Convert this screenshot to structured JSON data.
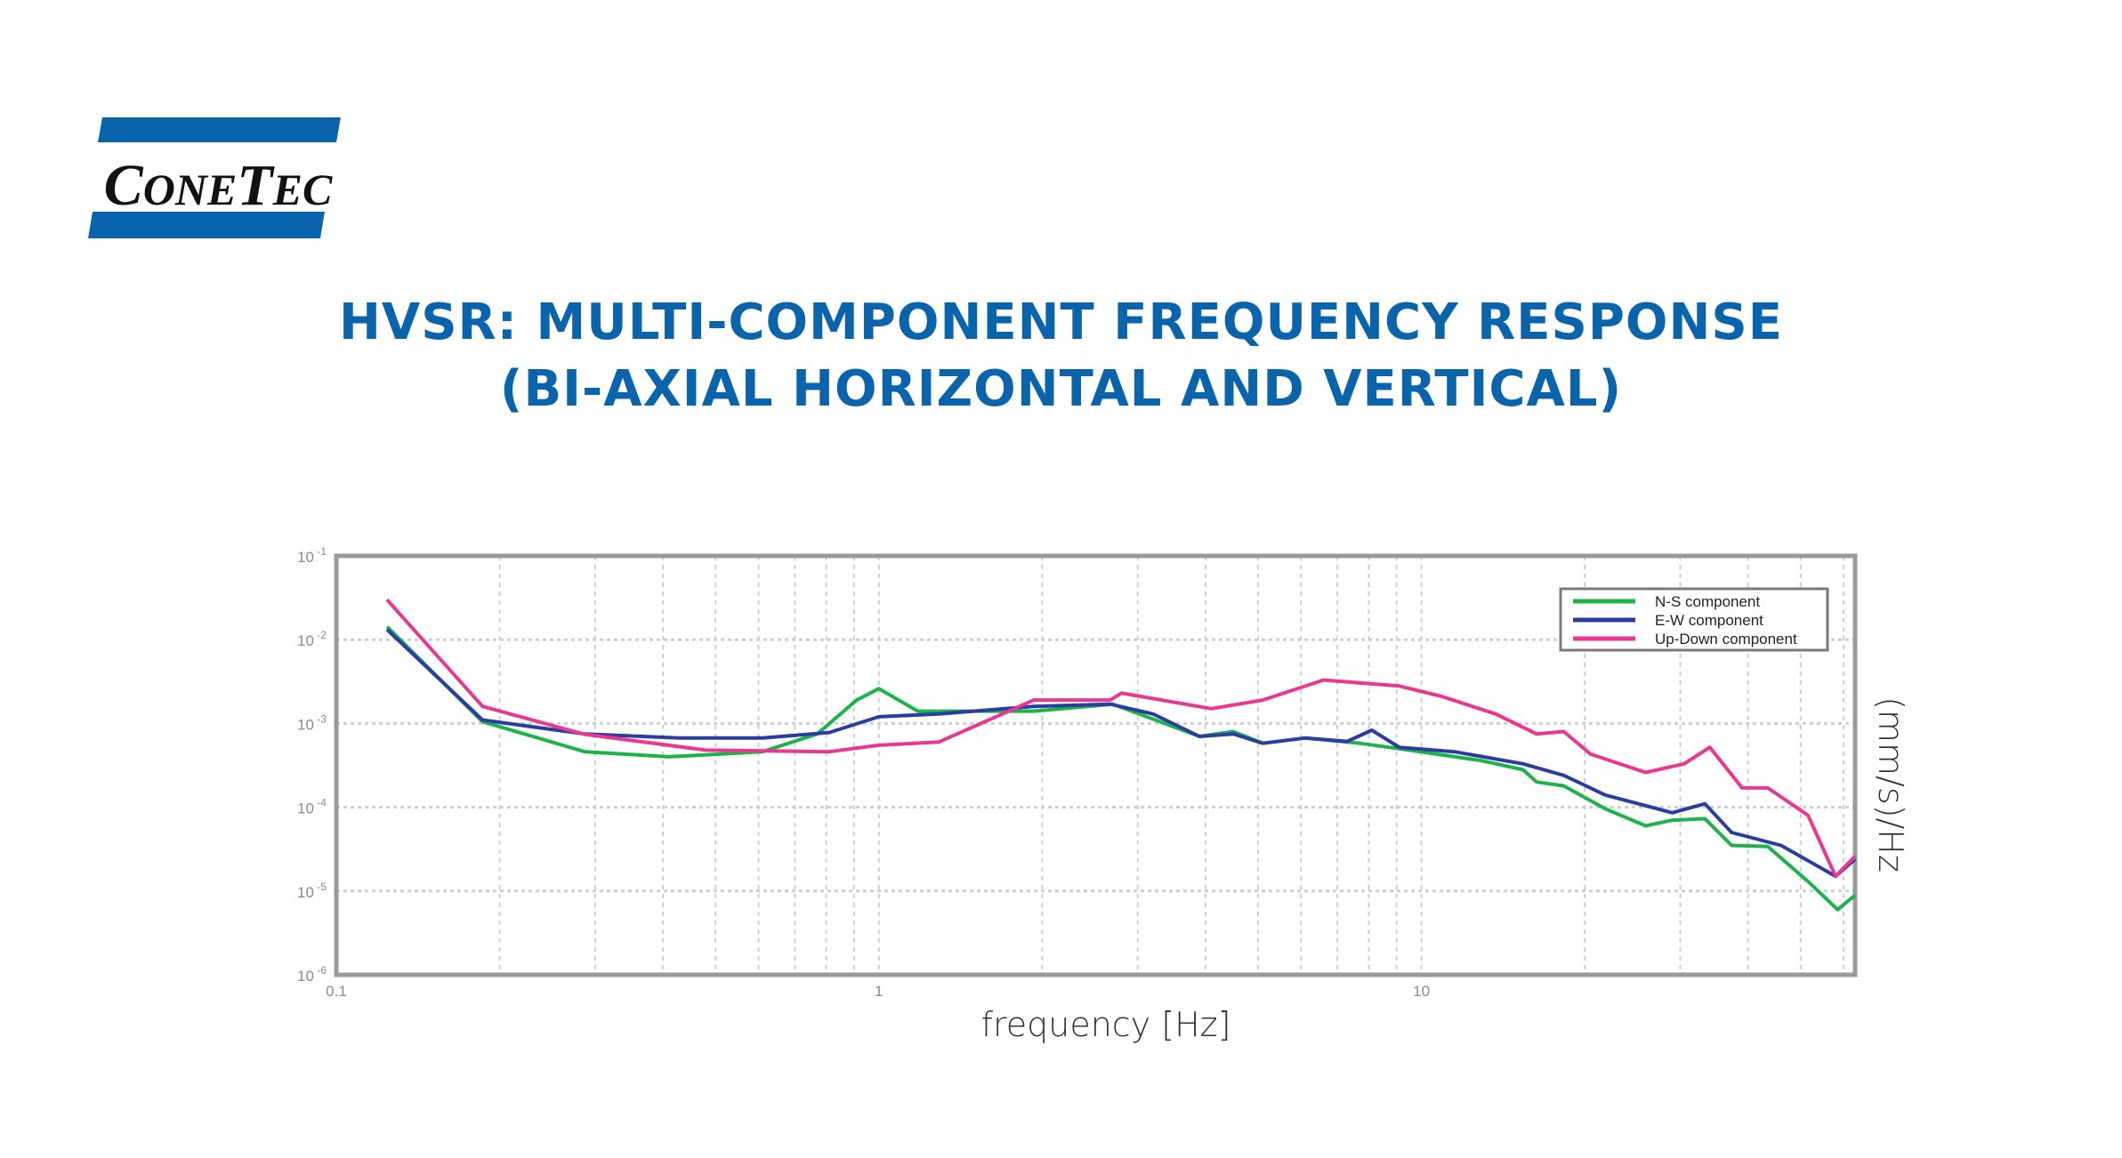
{
  "logo": {
    "text": "ConeTec",
    "color": "#0a64ac"
  },
  "title": {
    "line1": "HVSR: MULTI-COMPONENT FREQUENCY RESPONSE",
    "line2": "(BI-AXIAL HORIZONTAL AND VERTICAL)"
  },
  "chart_data": {
    "type": "line",
    "xlabel": "frequency [Hz]",
    "ylabel": "(mm/s)/Hz",
    "xscale": "log",
    "yscale": "log",
    "xlim": [
      0.1,
      63
    ],
    "ylim": [
      1e-06,
      0.1
    ],
    "x_ticks": [
      {
        "value": 0.1,
        "label": "0.1"
      },
      {
        "value": 1,
        "label": "1"
      },
      {
        "value": 10,
        "label": "10"
      }
    ],
    "y_ticks": [
      {
        "value": 0.1,
        "base": "10",
        "exp": "-1"
      },
      {
        "value": 0.01,
        "base": "10",
        "exp": "-2"
      },
      {
        "value": 0.001,
        "base": "10",
        "exp": "-3"
      },
      {
        "value": 0.0001,
        "base": "10",
        "exp": "-4"
      },
      {
        "value": 1e-05,
        "base": "10",
        "exp": "-5"
      },
      {
        "value": 1e-06,
        "base": "10",
        "exp": "-6"
      }
    ],
    "grid": true,
    "legend_position": "top-right",
    "series": [
      {
        "name": "N-S component",
        "color": "#1db34a",
        "x": [
          0.124,
          0.186,
          0.287,
          0.41,
          0.61,
          0.77,
          0.91,
          1.0,
          1.18,
          1.93,
          2.7,
          3.9,
          4.5,
          5.1,
          6.1,
          7.7,
          9.1,
          12.9,
          15.4,
          16.3,
          18.3,
          21.8,
          25.9,
          29,
          33.3,
          37.3,
          43.5,
          51.6,
          58.5,
          63
        ],
        "y": [
          0.0143,
          0.00105,
          0.00046,
          0.0004,
          0.00046,
          0.00075,
          0.0019,
          0.0026,
          0.0014,
          0.0014,
          0.0017,
          0.0007,
          0.0008,
          0.00058,
          0.00067,
          0.00058,
          0.0005,
          0.00036,
          0.00028,
          0.0002,
          0.00018,
          9.6e-05,
          6e-05,
          7e-05,
          7.3e-05,
          3.5e-05,
          3.4e-05,
          1.3e-05,
          6e-06,
          8.9e-06
        ]
      },
      {
        "name": "E-W component",
        "color": "#2b3ea0",
        "x": [
          0.124,
          0.186,
          0.287,
          0.43,
          0.61,
          0.81,
          1.0,
          1.29,
          1.93,
          2.67,
          3.2,
          3.9,
          4.5,
          5.1,
          6.1,
          7.3,
          8.1,
          9.1,
          11.5,
          15.4,
          18.3,
          21.8,
          29,
          33.3,
          37.3,
          46,
          58,
          63
        ],
        "y": [
          0.0132,
          0.0011,
          0.00075,
          0.00067,
          0.00067,
          0.00078,
          0.0012,
          0.0013,
          0.0016,
          0.0017,
          0.0013,
          0.0007,
          0.00075,
          0.00058,
          0.00067,
          0.00061,
          0.00083,
          0.00052,
          0.00046,
          0.00033,
          0.00024,
          0.00014,
          8.6e-05,
          0.00011,
          5e-05,
          3.5e-05,
          1.5e-05,
          2.4e-05
        ]
      },
      {
        "name": "Up-Down component",
        "color": "#e8388f",
        "x": [
          0.124,
          0.186,
          0.287,
          0.48,
          0.81,
          1.0,
          1.29,
          1.93,
          2.67,
          2.8,
          4.1,
          5.1,
          6.6,
          9.1,
          10.9,
          13.7,
          16.3,
          18.3,
          20.5,
          25.9,
          30.5,
          34,
          39,
          43.5,
          51.6,
          58,
          63
        ],
        "y": [
          0.03,
          0.0016,
          0.00074,
          0.00048,
          0.00046,
          0.00055,
          0.0006,
          0.0019,
          0.0019,
          0.0023,
          0.0015,
          0.0019,
          0.0033,
          0.0028,
          0.0021,
          0.0013,
          0.00075,
          0.0008,
          0.00043,
          0.00026,
          0.00033,
          0.00052,
          0.00017,
          0.00017,
          8e-05,
          1.5e-05,
          2.6e-05
        ]
      }
    ]
  }
}
